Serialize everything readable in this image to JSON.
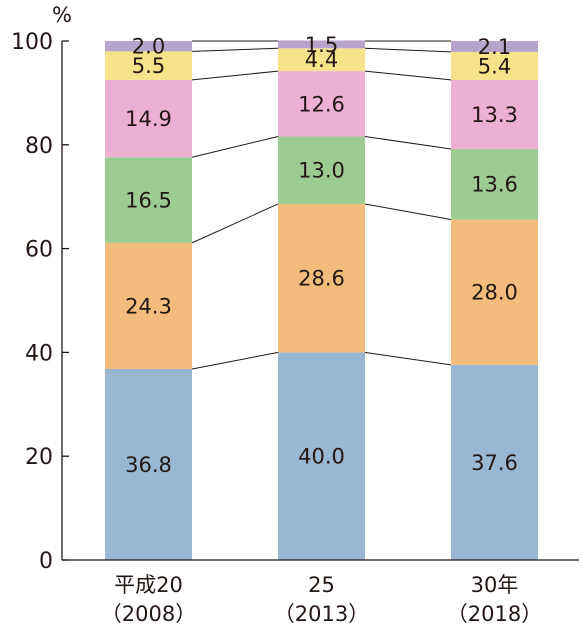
{
  "chart_data": {
    "type": "bar",
    "stacked": true,
    "title": "",
    "xlabel": "",
    "ylabel": "",
    "y_unit": "%",
    "ylim": [
      0,
      100
    ],
    "yticks": [
      "0",
      "20",
      "40",
      "60",
      "80",
      "100"
    ],
    "categories": [
      {
        "line1": "平成20",
        "line2": "（2008）"
      },
      {
        "line1": "25",
        "line2": "（2013）"
      },
      {
        "line1": "30年",
        "line2": "（2018）"
      }
    ],
    "series": [
      {
        "color": "#98b7d3",
        "values": [
          36.8,
          40.0,
          37.6
        ],
        "labels": [
          "36.8",
          "40.0",
          "37.6"
        ]
      },
      {
        "color": "#f4bc7c",
        "values": [
          24.3,
          28.6,
          28.0
        ],
        "labels": [
          "24.3",
          "28.6",
          "28.0"
        ]
      },
      {
        "color": "#9ccc94",
        "values": [
          16.5,
          13.0,
          13.6
        ],
        "labels": [
          "16.5",
          "13.0",
          "13.6"
        ]
      },
      {
        "color": "#edb0d2",
        "values": [
          14.9,
          12.6,
          13.3
        ],
        "labels": [
          "14.9",
          "12.6",
          "13.3"
        ]
      },
      {
        "color": "#f6e38a",
        "values": [
          5.5,
          4.4,
          5.4
        ],
        "labels": [
          "5.5",
          "4.4",
          "5.4"
        ]
      },
      {
        "color": "#b6a4cd",
        "values": [
          2.0,
          1.5,
          2.1
        ],
        "labels": [
          "2.0",
          "1.5",
          "2.1"
        ]
      }
    ],
    "connector_lines": true,
    "grid": false,
    "legend": "none"
  }
}
